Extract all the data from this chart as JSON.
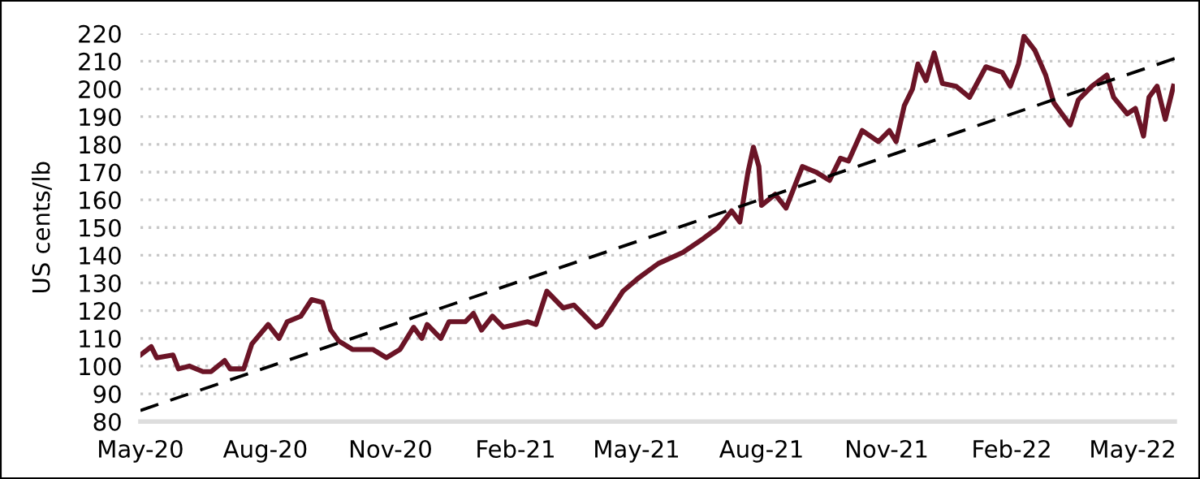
{
  "chart_data": {
    "type": "line",
    "ylabel": "US cents/lb",
    "grid": "y",
    "xlim": [
      "2020-05-01",
      "2022-06-01"
    ],
    "xticks": [
      {
        "value": "2020-05-01",
        "label": "May-20"
      },
      {
        "value": "2020-08-01",
        "label": "Aug-20"
      },
      {
        "value": "2020-11-01",
        "label": "Nov-20"
      },
      {
        "value": "2021-02-01",
        "label": "Feb-21"
      },
      {
        "value": "2021-05-01",
        "label": "May-21"
      },
      {
        "value": "2021-08-01",
        "label": "Aug-21"
      },
      {
        "value": "2021-11-01",
        "label": "Nov-21"
      },
      {
        "value": "2022-02-01",
        "label": "Feb-22"
      },
      {
        "value": "2022-05-01",
        "label": "May-22"
      }
    ],
    "ylim": [
      80,
      220
    ],
    "yticks": [
      80,
      90,
      100,
      110,
      120,
      130,
      140,
      150,
      160,
      170,
      180,
      190,
      200,
      210,
      220
    ],
    "series": [
      {
        "color": "#6b1426",
        "line_style": "solid",
        "x": [
          "2020-05-01",
          "2020-05-09",
          "2020-05-13",
          "2020-05-25",
          "2020-05-29",
          "2020-06-06",
          "2020-06-16",
          "2020-06-22",
          "2020-07-02",
          "2020-07-06",
          "2020-07-16",
          "2020-07-22",
          "2020-08-03",
          "2020-08-11",
          "2020-08-17",
          "2020-08-27",
          "2020-09-04",
          "2020-09-12",
          "2020-09-18",
          "2020-09-24",
          "2020-10-04",
          "2020-10-19",
          "2020-10-29",
          "2020-11-08",
          "2020-11-18",
          "2020-11-24",
          "2020-11-28",
          "2020-12-08",
          "2020-12-14",
          "2020-12-26",
          "2021-01-01",
          "2021-01-07",
          "2021-01-15",
          "2021-01-23",
          "2021-02-10",
          "2021-02-16",
          "2021-02-24",
          "2021-03-08",
          "2021-03-16",
          "2021-03-24",
          "2021-04-01",
          "2021-04-05",
          "2021-04-21",
          "2021-05-03",
          "2021-05-17",
          "2021-06-04",
          "2021-06-19",
          "2021-06-30",
          "2021-07-10",
          "2021-07-16",
          "2021-07-22",
          "2021-07-26",
          "2021-07-30",
          "2021-08-01",
          "2021-08-11",
          "2021-08-19",
          "2021-08-31",
          "2021-09-10",
          "2021-09-20",
          "2021-09-28",
          "2021-10-04",
          "2021-10-14",
          "2021-10-26",
          "2021-11-03",
          "2021-11-08",
          "2021-11-14",
          "2021-11-20",
          "2021-11-24",
          "2021-11-30",
          "2021-12-06",
          "2021-12-12",
          "2021-12-22",
          "2022-01-01",
          "2022-01-13",
          "2022-01-25",
          "2022-01-31",
          "2022-02-06",
          "2022-02-10",
          "2022-02-18",
          "2022-02-26",
          "2022-03-04",
          "2022-03-16",
          "2022-03-22",
          "2022-04-01",
          "2022-04-12",
          "2022-04-17",
          "2022-04-27",
          "2022-05-03",
          "2022-05-09",
          "2022-05-13",
          "2022-05-19",
          "2022-05-25",
          "2022-05-31"
        ],
        "values": [
          104,
          107,
          103,
          104,
          99,
          100,
          98,
          98,
          102,
          99,
          99,
          108,
          115,
          110,
          116,
          118,
          124,
          123,
          113,
          109,
          106,
          106,
          103,
          106,
          114,
          110,
          115,
          110,
          116,
          116,
          119,
          113,
          118,
          114,
          116,
          115,
          127,
          121,
          122,
          118,
          114,
          115,
          127,
          132,
          137,
          141,
          146,
          150,
          156,
          152,
          170,
          179,
          172,
          158,
          162,
          157,
          172,
          170,
          167,
          175,
          174,
          185,
          181,
          185,
          181,
          194,
          200,
          209,
          203,
          213,
          202,
          201,
          197,
          208,
          206,
          201,
          209,
          219,
          214,
          205,
          195,
          187,
          196,
          201,
          205,
          197,
          191,
          193,
          183,
          197,
          201,
          189,
          201
        ]
      },
      {
        "color": "#000000",
        "line_style": "dashed",
        "x": [
          "2020-05-01",
          "2022-06-01"
        ],
        "values": [
          84,
          211
        ]
      }
    ]
  }
}
